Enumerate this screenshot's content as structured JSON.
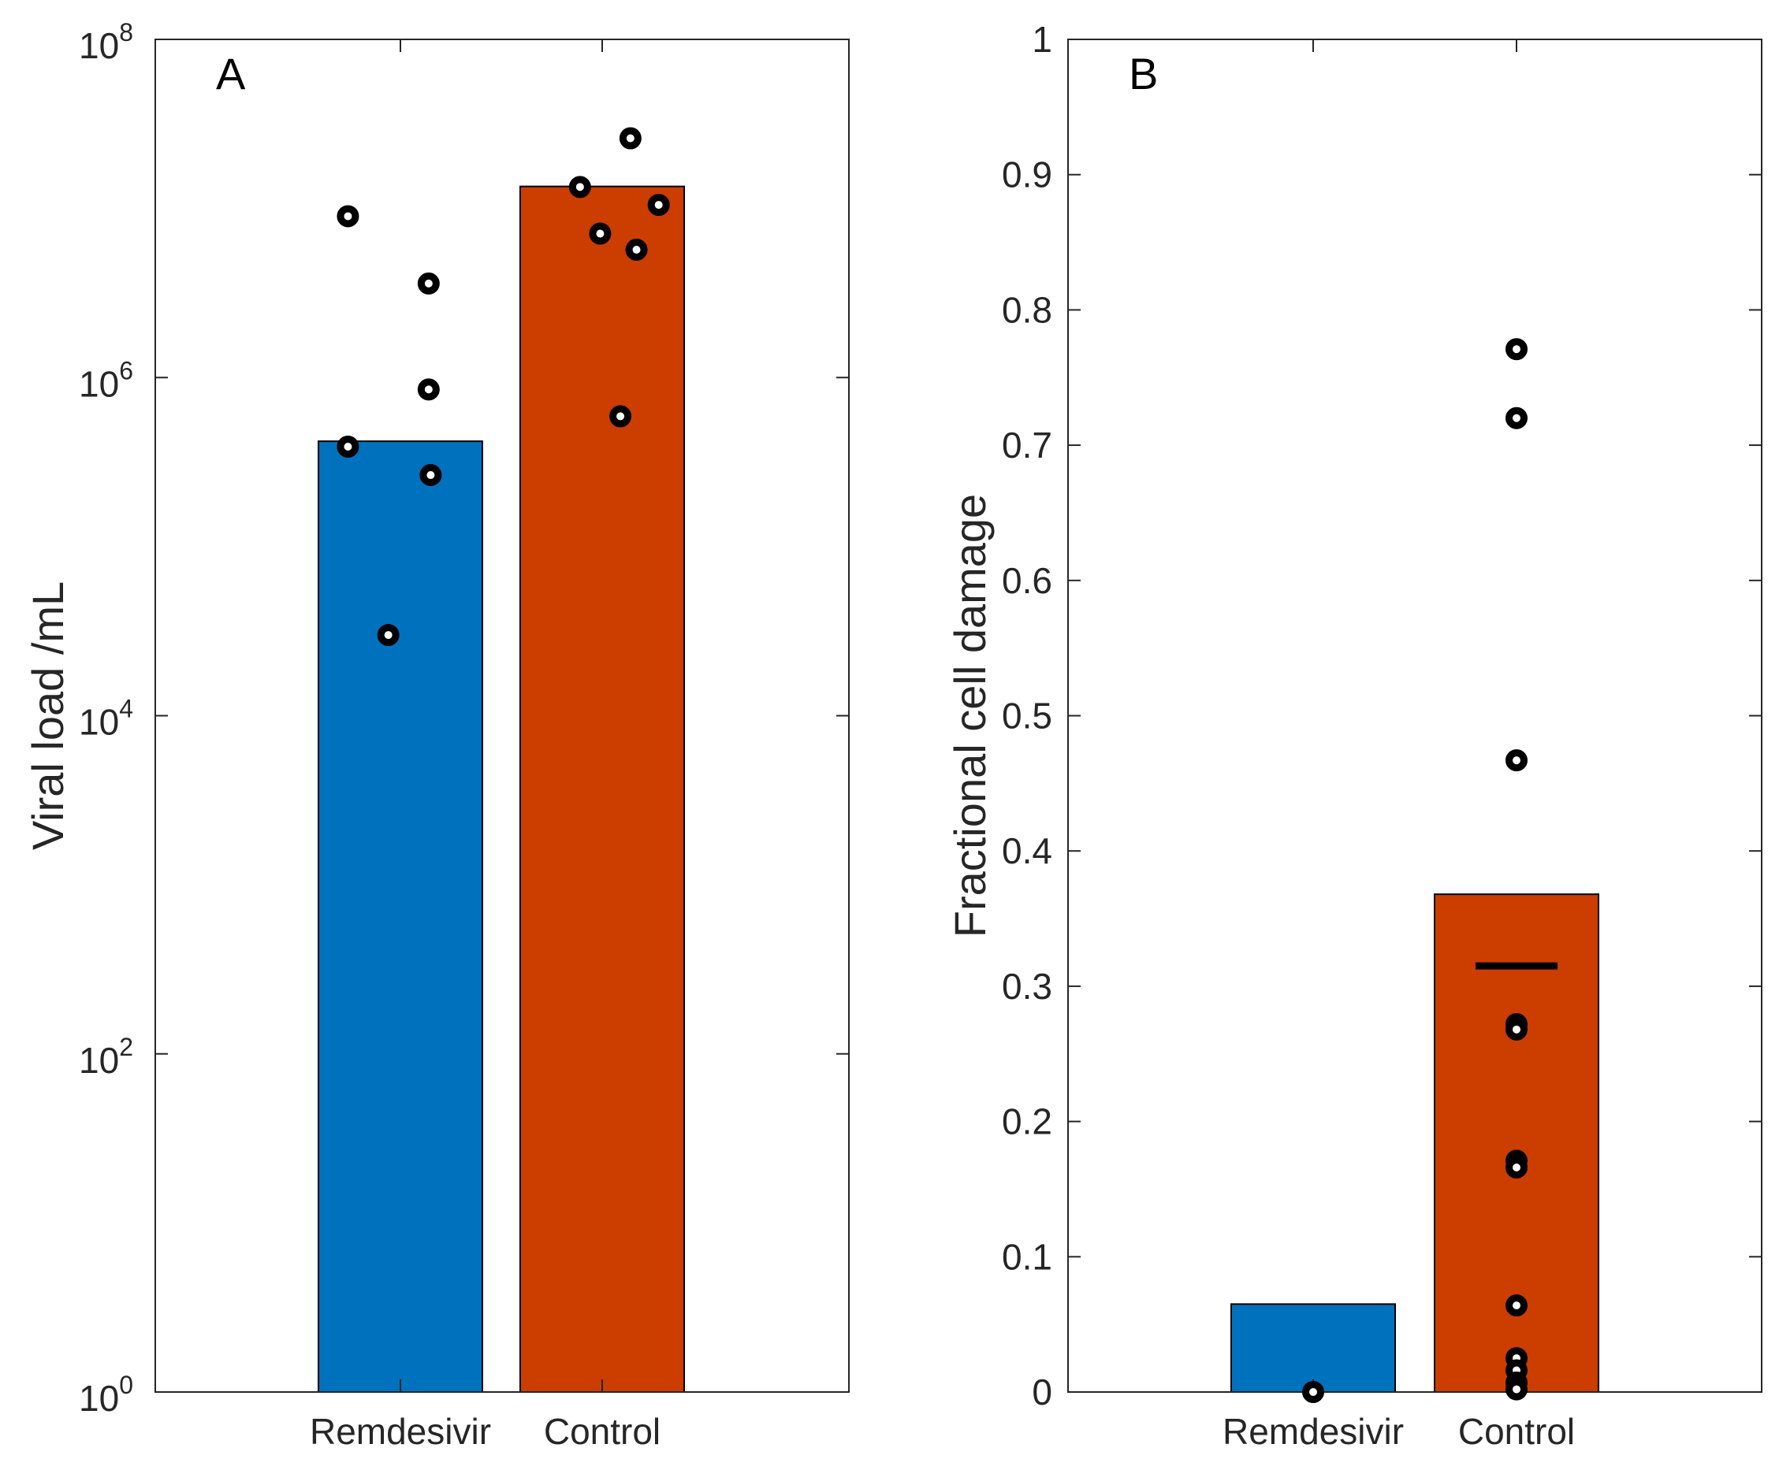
{
  "figure": {
    "colors": {
      "remdesivir": "#0072BD",
      "control": "#D95319",
      "control_rendered": "#CC3D00",
      "points": "#000000",
      "axes": "#262626"
    }
  },
  "chart_data": [
    {
      "panel": "A",
      "type": "bar",
      "yscale": "log",
      "ylabel": "Viral load /mL",
      "ylim": [
        1,
        100000000
      ],
      "ytick_labels": [
        {
          "base": "10",
          "exp": "0"
        },
        {
          "base": "10",
          "exp": "2"
        },
        {
          "base": "10",
          "exp": "4"
        },
        {
          "base": "10",
          "exp": "6"
        },
        {
          "base": "10",
          "exp": "8"
        }
      ],
      "ytick_values": [
        1,
        100,
        10000,
        1000000,
        100000000
      ],
      "categories": [
        "Remdesivir",
        "Control"
      ],
      "bars": [
        420000,
        13500000
      ],
      "points": [
        {
          "group": 0,
          "offset": -0.26,
          "y": 9000000
        },
        {
          "group": 0,
          "offset": 0.14,
          "y": 3600000
        },
        {
          "group": 0,
          "offset": 0.14,
          "y": 850000
        },
        {
          "group": 0,
          "offset": -0.26,
          "y": 390000
        },
        {
          "group": 0,
          "offset": 0.15,
          "y": 265000
        },
        {
          "group": 0,
          "offset": -0.06,
          "y": 30000
        },
        {
          "group": 1,
          "offset": 0.14,
          "y": 26000000
        },
        {
          "group": 1,
          "offset": -0.11,
          "y": 13400000
        },
        {
          "group": 1,
          "offset": 0.28,
          "y": 10500000
        },
        {
          "group": 1,
          "offset": -0.01,
          "y": 7100000
        },
        {
          "group": 1,
          "offset": 0.17,
          "y": 5700000
        },
        {
          "group": 1,
          "offset": 0.09,
          "y": 590000
        }
      ]
    },
    {
      "panel": "B",
      "type": "bar",
      "yscale": "linear",
      "ylabel": "Fractional cell damage",
      "ylim": [
        0,
        1
      ],
      "ytick_values": [
        0,
        0.1,
        0.2,
        0.3,
        0.4,
        0.5,
        0.6,
        0.7,
        0.8,
        0.9,
        1
      ],
      "ytick_labels": [
        "0",
        "0.1",
        "0.2",
        "0.3",
        "0.4",
        "0.5",
        "0.6",
        "0.7",
        "0.8",
        "0.9",
        "1"
      ],
      "categories": [
        "Remdesivir",
        "Control"
      ],
      "bars": [
        0.065,
        0.368
      ],
      "median_line": {
        "group": 1,
        "y": 0.315
      },
      "points": [
        {
          "group": 0,
          "offset": 0.0,
          "y": 0.0
        },
        {
          "group": 1,
          "offset": 0.0,
          "y": 0.771
        },
        {
          "group": 1,
          "offset": 0.0,
          "y": 0.72
        },
        {
          "group": 1,
          "offset": 0.0,
          "y": 0.467
        },
        {
          "group": 1,
          "offset": 0.0,
          "y": 0.272
        },
        {
          "group": 1,
          "offset": 0.0,
          "y": 0.268
        },
        {
          "group": 1,
          "offset": 0.0,
          "y": 0.171
        },
        {
          "group": 1,
          "offset": 0.0,
          "y": 0.166
        },
        {
          "group": 1,
          "offset": 0.0,
          "y": 0.064
        },
        {
          "group": 1,
          "offset": 0.0,
          "y": 0.025
        },
        {
          "group": 1,
          "offset": 0.0,
          "y": 0.016
        },
        {
          "group": 1,
          "offset": 0.0,
          "y": 0.007
        },
        {
          "group": 1,
          "offset": 0.0,
          "y": 0.002
        }
      ]
    }
  ]
}
